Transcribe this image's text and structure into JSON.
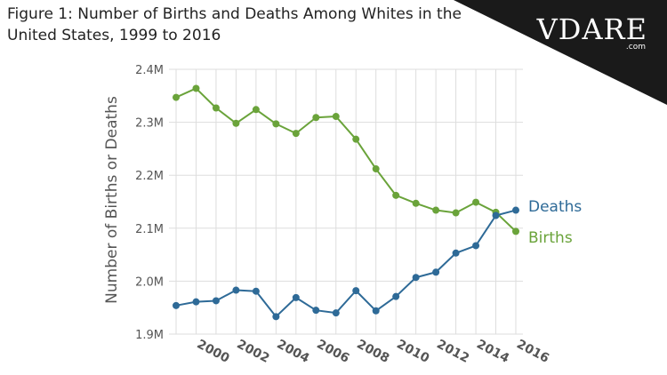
{
  "title": "Figure 1: Number of Births and Deaths Among Whites in the United States, 1999 to 2016",
  "logo": {
    "text": "VDARE",
    "domain": ".com",
    "icon": "statue-of-liberty-icon"
  },
  "colors": {
    "deaths": "#2e6a97",
    "births": "#6aa33a",
    "grid": "#dddddd",
    "tick": "#555555",
    "banner": "#1a1a1a"
  },
  "chart_data": {
    "type": "line",
    "title": "Figure 1: Number of Births and Deaths Among Whites in the United States, 1999 to 2016",
    "xlabel": "",
    "ylabel": "Number of Births or Deaths",
    "x": [
      1999,
      2000,
      2001,
      2002,
      2003,
      2004,
      2005,
      2006,
      2007,
      2008,
      2009,
      2010,
      2011,
      2012,
      2013,
      2014,
      2015,
      2016
    ],
    "xlim": [
      1999,
      2016
    ],
    "ylim": [
      1900000,
      2400000
    ],
    "xticks": [
      "2000",
      "2002",
      "2004",
      "2006",
      "2008",
      "2010",
      "2012",
      "2014",
      "2016"
    ],
    "yticks": [
      "1.9M",
      "2.0M",
      "2.1M",
      "2.2M",
      "2.3M",
      "2.4M"
    ],
    "grid": true,
    "series": [
      {
        "name": "Births",
        "values": [
          2347000,
          2364000,
          2327000,
          2298000,
          2324000,
          2297000,
          2279000,
          2309000,
          2311000,
          2268000,
          2212000,
          2162000,
          2147000,
          2134000,
          2129000,
          2149000,
          2130000,
          2094000
        ]
      },
      {
        "name": "Deaths",
        "values": [
          1954000,
          1961000,
          1963000,
          1983000,
          1981000,
          1933000,
          1969000,
          1945000,
          1940000,
          1982000,
          1944000,
          1971000,
          2007000,
          2017000,
          2053000,
          2067000,
          2124000,
          2134000
        ]
      }
    ],
    "legend": {
      "placement": "right-inline",
      "entries": [
        "Deaths",
        "Births"
      ]
    }
  }
}
